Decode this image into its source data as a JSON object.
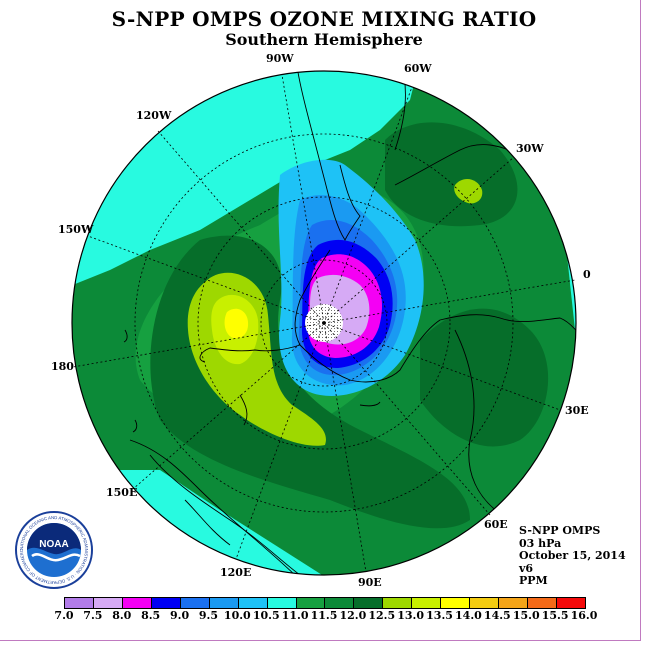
{
  "title": "S-NPP OMPS OZONE MIXING RATIO",
  "subtitle": "Southern Hemisphere",
  "longitude_labels": [
    "90W",
    "60W",
    "30W",
    "0",
    "30E",
    "60E",
    "90E",
    "120E",
    "150E",
    "180",
    "150W",
    "120W"
  ],
  "info": {
    "instrument": "S-NPP OMPS",
    "level": "03 hPa",
    "date": "October 15, 2014",
    "version": "v6",
    "units": "PPM"
  },
  "logo": {
    "text": "NOAA",
    "ring_text": "NATIONAL OCEANIC AND ATMOSPHERIC ADMINISTRATION · U.S. DEPARTMENT OF COMMERCE"
  },
  "legend": {
    "values": [
      "7.0",
      "7.5",
      "8.0",
      "8.5",
      "9.0",
      "9.5",
      "10.0",
      "10.5",
      "11.0",
      "11.5",
      "12.0",
      "12.5",
      "13.0",
      "13.5",
      "14.0",
      "14.5",
      "15.0",
      "15.5",
      "16.0"
    ],
    "colors": [
      "#b27ce9",
      "#d6aaf5",
      "#f400f4",
      "#0000f4",
      "#1a70f0",
      "#1a9af2",
      "#1ec2f6",
      "#28fae0",
      "#16a040",
      "#0c8a38",
      "#066e2a",
      "#9ed800",
      "#c8f000",
      "#ffff00",
      "#f4cc10",
      "#f4a418",
      "#f46a18",
      "#f40a0a",
      "#8c5a32"
    ]
  },
  "map_colors": {
    "background": "#0c8a38",
    "c_10_5": "#28fae0",
    "c_11_0": "#16a040",
    "c_12_0": "#066e2a",
    "c_12_5": "#9ed800",
    "c_13_0": "#c8f000",
    "c_13_5": "#ffff00",
    "c_10_0": "#1ec2f6",
    "c_9_5": "#1a9af2",
    "c_9_0": "#1a70f0",
    "c_8_5": "#0000f4",
    "c_8_0": "#f400f4",
    "c_7_5": "#d6aaf5",
    "c_7_0": "#b27ce9",
    "pole": "#ffffff"
  }
}
